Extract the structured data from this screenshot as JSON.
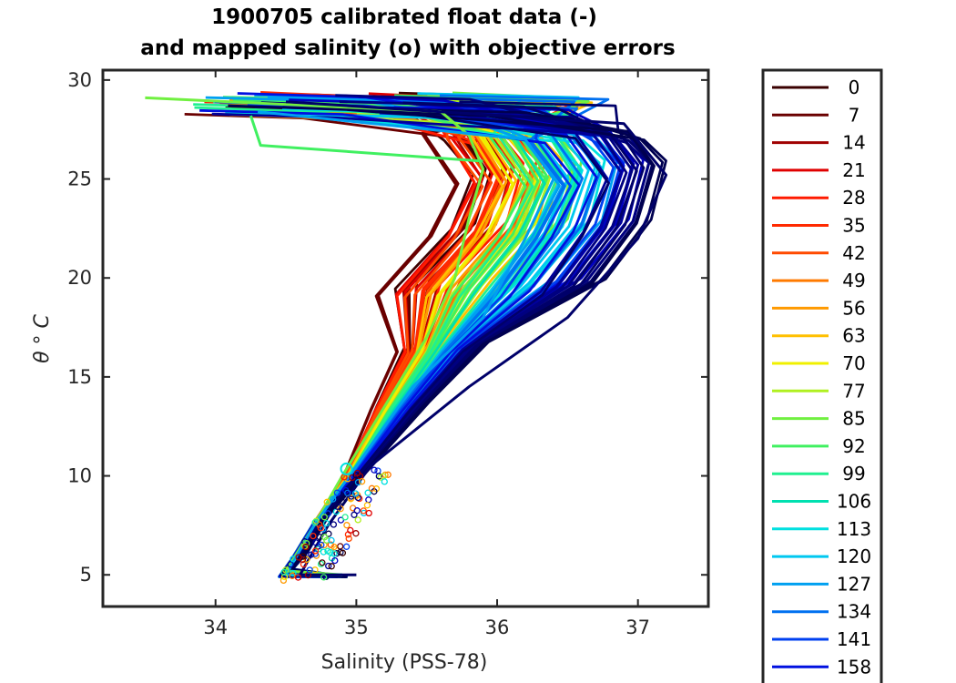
{
  "chart_data": {
    "type": "line",
    "title_line1": "1900705 calibrated float data (-)",
    "title_line2": "and mapped salinity (o) with objective errors",
    "xlabel": "Salinity (PSS-78)",
    "ylabel": "θ ° C",
    "xlim": [
      33.2,
      37.5
    ],
    "ylim": [
      3.4,
      30.5
    ],
    "xticks": [
      34,
      35,
      36,
      37
    ],
    "yticks": [
      5,
      10,
      15,
      20,
      25,
      30
    ],
    "xtick_labels": [
      "34",
      "35",
      "36",
      "37"
    ],
    "ytick_labels": [
      "5",
      "10",
      "15",
      "20",
      "25",
      "30"
    ],
    "legend_position": "outside-right",
    "legend_labels": [
      "0",
      "7",
      "14",
      "21",
      "28",
      "35",
      "42",
      "49",
      "56",
      "63",
      "70",
      "77",
      "85",
      "92",
      "99",
      "106",
      "113",
      "120",
      "127",
      "134",
      "141",
      "158"
    ],
    "legend_colors": [
      "#3a0000",
      "#6a0000",
      "#a00000",
      "#e00000",
      "#ff1a00",
      "#ff2a00",
      "#ff4a00",
      "#ff7a00",
      "#ff9a00",
      "#ffc000",
      "#f0f000",
      "#b0f020",
      "#70f040",
      "#40f060",
      "#20f090",
      "#00e0b0",
      "#00e0e0",
      "#00c8f0",
      "#00a0f0",
      "#0070f0",
      "#0040f0",
      "#0010e0"
    ],
    "extra_series_colors": [
      "#0000c0",
      "#00009a",
      "#000080",
      "#00006a",
      "#000050"
    ],
    "representative_profiles": {
      "warm_early": [
        [
          33.5,
          29.1
        ],
        [
          35.6,
          28.4
        ],
        [
          35.8,
          27.2
        ],
        [
          35.9,
          25.5
        ],
        [
          35.8,
          23.0
        ],
        [
          35.7,
          20.0
        ],
        [
          35.5,
          17.0
        ],
        [
          35.2,
          13.5
        ],
        [
          34.9,
          10.0
        ],
        [
          34.7,
          7.5
        ],
        [
          34.5,
          5.2
        ],
        [
          34.9,
          5.0
        ]
      ],
      "mid_period": [
        [
          34.3,
          28.4
        ],
        [
          36.2,
          27.0
        ],
        [
          36.4,
          25.0
        ],
        [
          36.2,
          22.0
        ],
        [
          35.9,
          18.0
        ],
        [
          35.4,
          14.5
        ],
        [
          35.0,
          10.5
        ],
        [
          34.7,
          7.5
        ],
        [
          34.5,
          5.0
        ],
        [
          34.9,
          5.0
        ]
      ],
      "late_period": [
        [
          34.5,
          28.9
        ],
        [
          36.9,
          27.8
        ],
        [
          37.2,
          25.2
        ],
        [
          37.0,
          22.0
        ],
        [
          36.5,
          18.0
        ],
        [
          35.8,
          14.5
        ],
        [
          35.1,
          10.5
        ],
        [
          34.8,
          7.5
        ],
        [
          34.6,
          5.0
        ],
        [
          35.0,
          5.0
        ]
      ],
      "green_spike": [
        [
          34.25,
          28.2
        ],
        [
          34.32,
          26.7
        ],
        [
          35.9,
          25.9
        ]
      ]
    }
  }
}
